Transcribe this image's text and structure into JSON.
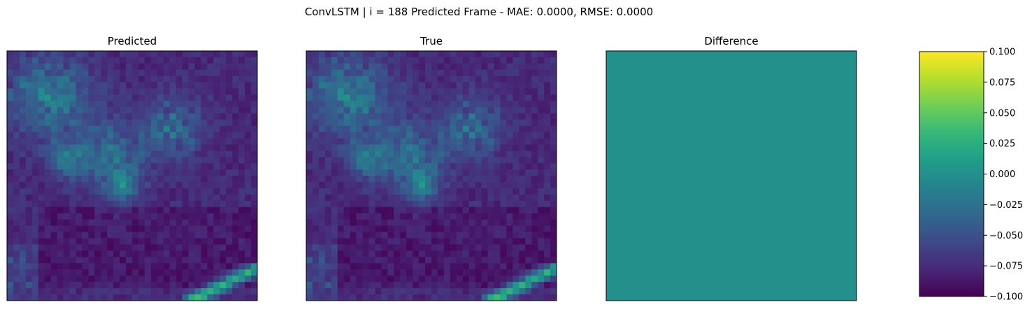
{
  "figure": {
    "suptitle": "ConvLSTM | i = 188 Predicted Frame - MAE: 0.0000, RMSE: 0.0000"
  },
  "chart_data": [
    {
      "type": "heatmap",
      "title": "Predicted",
      "grid_size": [
        40,
        40
      ],
      "colormap": "viridis",
      "axes_ticks": "none",
      "description_values": "field of low values with brighter patches upper-left and a bright diagonal band bottom-right"
    },
    {
      "type": "heatmap",
      "title": "True",
      "grid_size": [
        40,
        40
      ],
      "colormap": "viridis",
      "axes_ticks": "none"
    },
    {
      "type": "heatmap",
      "title": "Difference",
      "grid_size": [
        1,
        1
      ],
      "values": [
        [
          0.0
        ]
      ],
      "colormap": "viridis",
      "vmin": -0.1,
      "vmax": 0.1,
      "axes_ticks": "none"
    }
  ],
  "colorbar": {
    "colormap": "viridis",
    "min": -0.1,
    "max": 0.1,
    "ticks": [
      0.1,
      0.075,
      0.05,
      0.025,
      0.0,
      -0.025,
      -0.05,
      -0.075,
      -0.1
    ],
    "tick_labels": [
      "0.100",
      "0.075",
      "0.050",
      "0.025",
      "0.000",
      "−0.025",
      "−0.050",
      "−0.075",
      "−0.100"
    ]
  },
  "colors": {
    "viridis_stops": [
      "#440154",
      "#482878",
      "#3e4989",
      "#31688e",
      "#26828e",
      "#1f9e89",
      "#35b779",
      "#6ece58",
      "#b5de2b",
      "#fde725"
    ],
    "difference_fill": "#21918c"
  }
}
